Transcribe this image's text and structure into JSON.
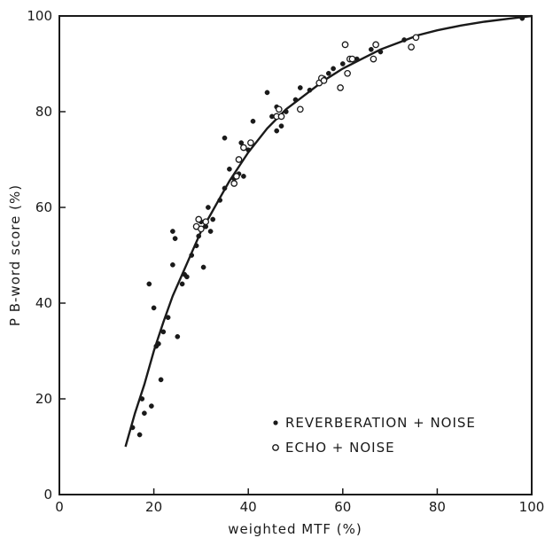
{
  "chart_data": {
    "type": "scatter",
    "xlabel": "weighted MTF (%)",
    "ylabel": "P B-word score (%)",
    "xlim": [
      0,
      100
    ],
    "ylim": [
      0,
      100
    ],
    "xticks": [
      0,
      20,
      40,
      60,
      80,
      100
    ],
    "yticks": [
      0,
      20,
      40,
      60,
      80,
      100
    ],
    "grid": false,
    "legend_position": "bottom-right",
    "series": [
      {
        "name": "REVERBERATION + NOISE",
        "marker": "filled-circle",
        "color": "#1a1a1a",
        "points": [
          [
            15.5,
            14
          ],
          [
            17,
            12.5
          ],
          [
            17.5,
            20
          ],
          [
            18,
            17
          ],
          [
            19,
            44
          ],
          [
            19.5,
            18.5
          ],
          [
            20,
            39
          ],
          [
            20.5,
            31
          ],
          [
            21,
            31.5
          ],
          [
            21.5,
            24
          ],
          [
            22,
            34
          ],
          [
            23,
            37
          ],
          [
            24,
            48
          ],
          [
            24,
            55
          ],
          [
            24.5,
            53.5
          ],
          [
            25,
            33
          ],
          [
            26,
            44
          ],
          [
            26.5,
            46
          ],
          [
            27,
            45.5
          ],
          [
            28,
            50
          ],
          [
            29,
            52
          ],
          [
            29.5,
            54
          ],
          [
            30,
            57
          ],
          [
            30.5,
            47.5
          ],
          [
            31,
            56
          ],
          [
            31.5,
            60
          ],
          [
            32,
            55
          ],
          [
            32.5,
            57.5
          ],
          [
            34,
            61.5
          ],
          [
            35,
            64
          ],
          [
            35,
            74.5
          ],
          [
            36,
            68
          ],
          [
            37,
            66
          ],
          [
            38,
            67
          ],
          [
            38.5,
            73.5
          ],
          [
            39,
            66.5
          ],
          [
            40,
            72
          ],
          [
            41,
            78
          ],
          [
            44,
            84
          ],
          [
            45,
            79
          ],
          [
            46,
            76
          ],
          [
            46,
            81
          ],
          [
            47,
            77
          ],
          [
            48,
            80
          ],
          [
            50,
            82.5
          ],
          [
            51,
            85
          ],
          [
            53,
            84.5
          ],
          [
            56,
            87
          ],
          [
            57,
            88
          ],
          [
            58,
            89
          ],
          [
            60,
            90
          ],
          [
            63,
            91
          ],
          [
            66,
            93
          ],
          [
            68,
            92.5
          ],
          [
            73,
            95
          ],
          [
            98,
            99.5
          ]
        ]
      },
      {
        "name": "ECHO + NOISE",
        "marker": "open-circle",
        "color": "#1a1a1a",
        "points": [
          [
            29,
            56
          ],
          [
            29.5,
            57.5
          ],
          [
            30,
            55.5
          ],
          [
            31,
            57
          ],
          [
            37,
            65
          ],
          [
            37.5,
            66.5
          ],
          [
            38,
            70
          ],
          [
            39,
            72.5
          ],
          [
            40.5,
            73.5
          ],
          [
            46,
            79
          ],
          [
            46.5,
            80.5
          ],
          [
            47,
            79
          ],
          [
            51,
            80.5
          ],
          [
            55,
            86
          ],
          [
            55.5,
            87
          ],
          [
            56,
            86.5
          ],
          [
            59.5,
            85
          ],
          [
            60.5,
            94
          ],
          [
            61,
            88
          ],
          [
            61.5,
            91
          ],
          [
            62,
            91
          ],
          [
            66.5,
            91
          ],
          [
            67,
            94
          ],
          [
            74.5,
            93.5
          ],
          [
            75.5,
            95.5
          ]
        ]
      }
    ],
    "fit_curve": [
      [
        14,
        10
      ],
      [
        16,
        17
      ],
      [
        18,
        23
      ],
      [
        20,
        30
      ],
      [
        22,
        36
      ],
      [
        24,
        41.5
      ],
      [
        26,
        46
      ],
      [
        28,
        50.5
      ],
      [
        30,
        55
      ],
      [
        32,
        58.5
      ],
      [
        34,
        62
      ],
      [
        36,
        65.5
      ],
      [
        38,
        68.5
      ],
      [
        40,
        71.5
      ],
      [
        44,
        76.5
      ],
      [
        48,
        80.5
      ],
      [
        52,
        83.5
      ],
      [
        56,
        86.5
      ],
      [
        60,
        89
      ],
      [
        64,
        91
      ],
      [
        68,
        93
      ],
      [
        72,
        94.5
      ],
      [
        76,
        96
      ],
      [
        80,
        97
      ],
      [
        85,
        98
      ],
      [
        90,
        98.8
      ],
      [
        95,
        99.4
      ],
      [
        100,
        100
      ]
    ]
  }
}
